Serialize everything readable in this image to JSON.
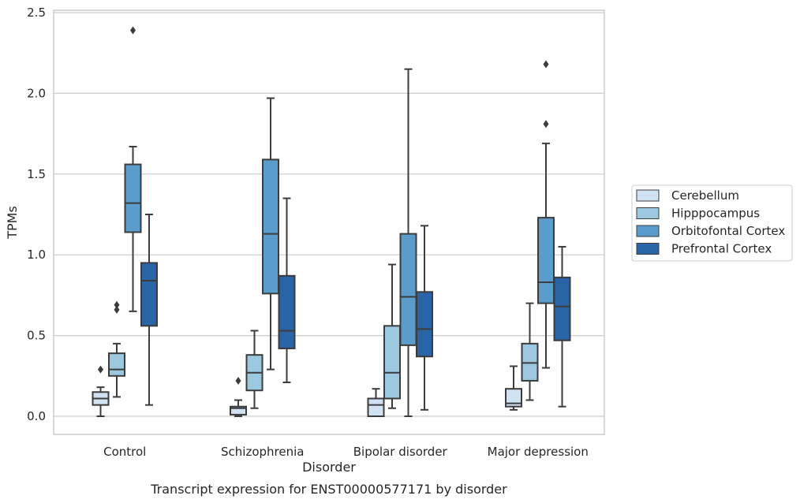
{
  "chart_data": {
    "type": "box",
    "caption": "Transcript expression for ENST00000577171 by disorder",
    "xlabel": "Disorder",
    "ylabel": "TPMs",
    "ylim": [
      -0.12,
      2.52
    ],
    "yticks": [
      0.0,
      0.5,
      1.0,
      1.5,
      2.0,
      2.5
    ],
    "ytick_labels": [
      "0.0",
      "0.5",
      "1.0",
      "1.5",
      "2.0",
      "2.5"
    ],
    "grid": "horizontal",
    "legend_position": "right",
    "categories": [
      "Control",
      "Schizophrenia",
      "Bipolar disorder",
      "Major depression"
    ],
    "series": [
      {
        "name": "Cerebellum",
        "color": "#d0e2f2",
        "boxes": [
          {
            "whisker_low": 0.0,
            "q1": 0.07,
            "median": 0.11,
            "q3": 0.15,
            "whisker_high": 0.18,
            "outliers": [
              0.29
            ]
          },
          {
            "whisker_low": 0.0,
            "q1": 0.01,
            "median": 0.05,
            "q3": 0.06,
            "whisker_high": 0.1,
            "outliers": [
              0.22
            ]
          },
          {
            "whisker_low": 0.0,
            "q1": 0.0,
            "median": 0.07,
            "q3": 0.11,
            "whisker_high": 0.17,
            "outliers": []
          },
          {
            "whisker_low": 0.04,
            "q1": 0.06,
            "median": 0.08,
            "q3": 0.17,
            "whisker_high": 0.31,
            "outliers": []
          }
        ]
      },
      {
        "name": "Hipppocampus",
        "color": "#9bc7df",
        "boxes": [
          {
            "whisker_low": 0.12,
            "q1": 0.25,
            "median": 0.29,
            "q3": 0.39,
            "whisker_high": 0.45,
            "outliers": [
              0.66,
              0.69
            ]
          },
          {
            "whisker_low": 0.05,
            "q1": 0.16,
            "median": 0.27,
            "q3": 0.38,
            "whisker_high": 0.53,
            "outliers": []
          },
          {
            "whisker_low": 0.05,
            "q1": 0.11,
            "median": 0.27,
            "q3": 0.56,
            "whisker_high": 0.94,
            "outliers": []
          },
          {
            "whisker_low": 0.1,
            "q1": 0.22,
            "median": 0.33,
            "q3": 0.45,
            "whisker_high": 0.7,
            "outliers": []
          }
        ]
      },
      {
        "name": "Orbitofontal Cortex",
        "color": "#5a9ccb",
        "boxes": [
          {
            "whisker_low": 0.65,
            "q1": 1.14,
            "median": 1.32,
            "q3": 1.56,
            "whisker_high": 1.67,
            "outliers": [
              2.39
            ]
          },
          {
            "whisker_low": 0.29,
            "q1": 0.76,
            "median": 1.13,
            "q3": 1.59,
            "whisker_high": 1.97,
            "outliers": []
          },
          {
            "whisker_low": 0.0,
            "q1": 0.44,
            "median": 0.74,
            "q3": 1.13,
            "whisker_high": 2.15,
            "outliers": []
          },
          {
            "whisker_low": 0.3,
            "q1": 0.7,
            "median": 0.83,
            "q3": 1.23,
            "whisker_high": 1.69,
            "outliers": [
              1.81,
              2.18
            ]
          }
        ]
      },
      {
        "name": "Prefrontal Cortex",
        "color": "#2964a6",
        "boxes": [
          {
            "whisker_low": 0.07,
            "q1": 0.56,
            "median": 0.84,
            "q3": 0.95,
            "whisker_high": 1.25,
            "outliers": []
          },
          {
            "whisker_low": 0.21,
            "q1": 0.42,
            "median": 0.53,
            "q3": 0.87,
            "whisker_high": 1.35,
            "outliers": []
          },
          {
            "whisker_low": 0.04,
            "q1": 0.37,
            "median": 0.54,
            "q3": 0.77,
            "whisker_high": 1.18,
            "outliers": []
          },
          {
            "whisker_low": 0.06,
            "q1": 0.47,
            "median": 0.68,
            "q3": 0.86,
            "whisker_high": 1.05,
            "outliers": []
          }
        ]
      }
    ]
  }
}
